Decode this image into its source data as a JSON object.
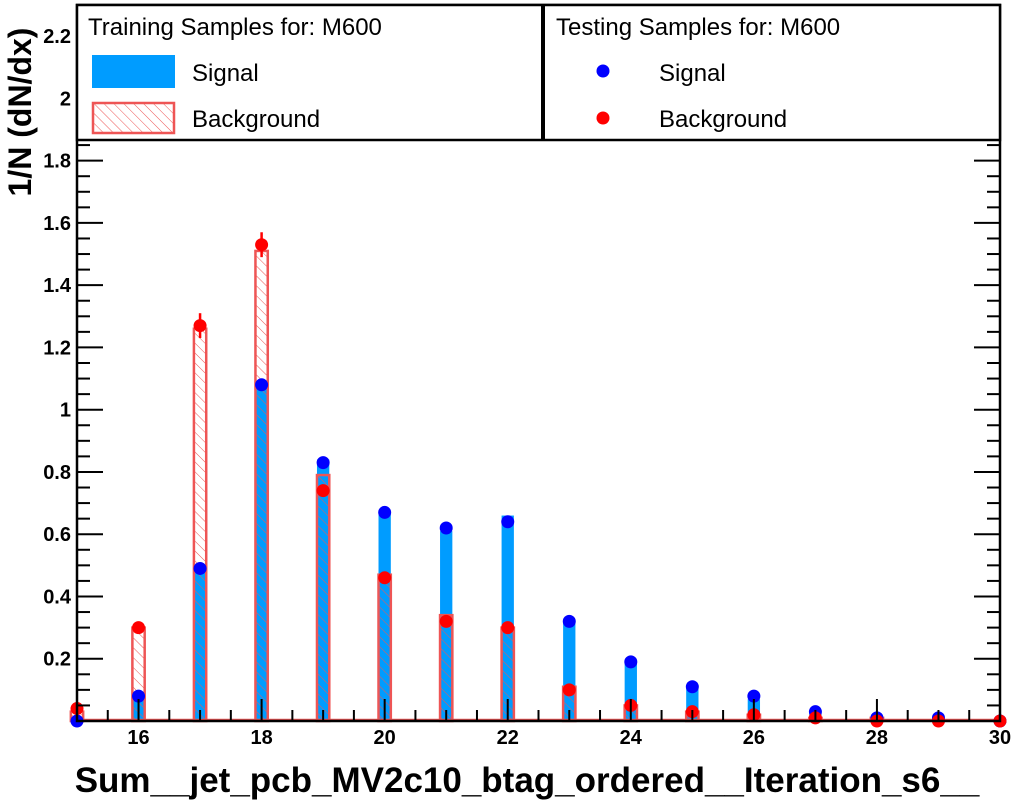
{
  "chart_data": {
    "type": "bar",
    "xlabel": "Sum__jet_pcb_MV2c10_btag_ordered__Iteration_s6__",
    "ylabel": "1/N (dN/dx)",
    "xlim": [
      15,
      30
    ],
    "ylim": [
      0,
      2.3
    ],
    "x_ticks": [
      16,
      18,
      20,
      22,
      24,
      26,
      28,
      30
    ],
    "y_ticks": [
      0.2,
      0.4,
      0.6,
      0.8,
      1,
      1.2,
      1.4,
      1.6,
      1.8,
      2,
      2.2
    ],
    "bin_width": 0.2,
    "x": [
      15,
      16,
      17,
      18,
      19,
      20,
      21,
      22,
      23,
      24,
      25,
      26,
      27,
      28,
      29,
      30
    ],
    "training": {
      "header": "Training Samples for: M600",
      "series": [
        {
          "name": "Signal",
          "color": "#009cff",
          "style": "filled",
          "values": [
            0.0,
            0.08,
            0.49,
            1.08,
            0.84,
            0.67,
            0.61,
            0.66,
            0.32,
            0.19,
            0.11,
            0.07,
            0.03,
            0.01,
            0.01,
            0.0
          ]
        },
        {
          "name": "Background",
          "color": "#ee5555",
          "style": "hatched",
          "values": [
            0.03,
            0.3,
            1.26,
            1.51,
            0.79,
            0.47,
            0.34,
            0.3,
            0.11,
            0.05,
            0.03,
            0.02,
            0.01,
            0.01,
            0.0,
            0.0
          ]
        }
      ]
    },
    "testing": {
      "header": "Testing Samples for: M600",
      "series": [
        {
          "name": "Signal",
          "color": "#0000ff",
          "values": [
            0.0,
            0.08,
            0.49,
            1.08,
            0.83,
            0.67,
            0.62,
            0.64,
            0.32,
            0.19,
            0.11,
            0.08,
            0.03,
            0.01,
            0.01,
            0.0
          ]
        },
        {
          "name": "Background",
          "color": "#ff0000",
          "values": [
            0.04,
            0.3,
            1.27,
            1.53,
            0.74,
            0.46,
            0.32,
            0.3,
            0.1,
            0.05,
            0.03,
            0.02,
            0.01,
            0.0,
            0.0,
            0.0
          ],
          "errors": [
            0.0,
            0.01,
            0.04,
            0.04,
            0.02,
            0.0,
            0.0,
            0.0,
            0.0,
            0.0,
            0.0,
            0.0,
            0.0,
            0.0,
            0.0,
            0.0
          ]
        }
      ]
    }
  }
}
